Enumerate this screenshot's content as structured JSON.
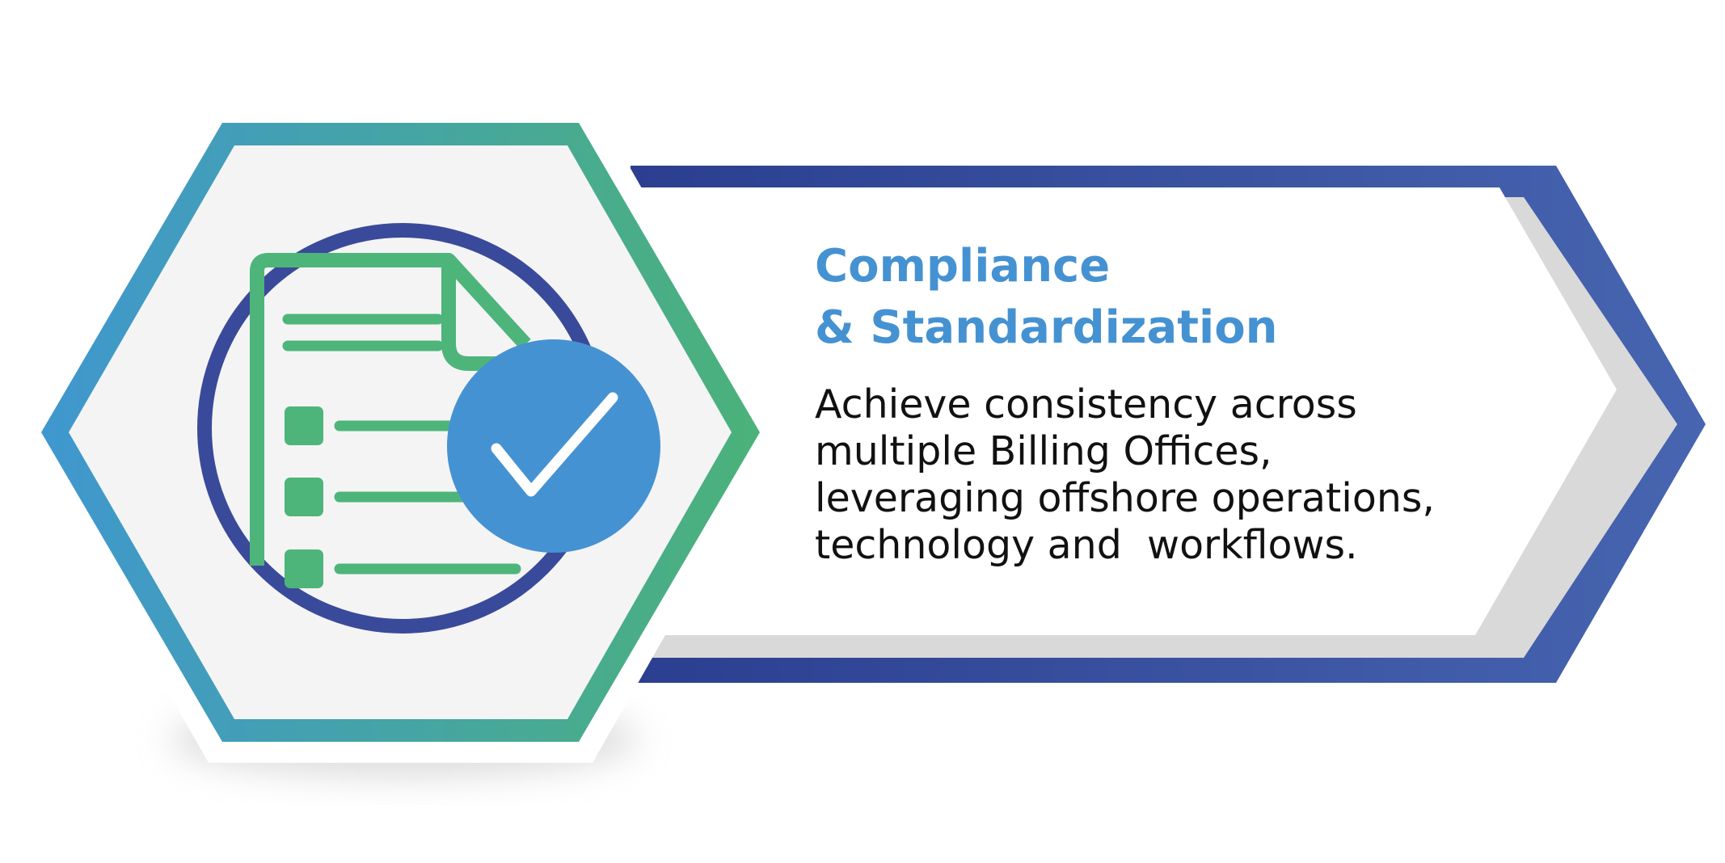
{
  "card": {
    "title_line_1": "Compliance",
    "title_line_2": "& Standardization",
    "description_lines": [
      "Achieve consistency across",
      "multiple Billing Offices,",
      "leveraging offshore operations,",
      "technology and  workflows."
    ]
  },
  "icon": {
    "name": "checklist-document-with-checkmark-icon"
  },
  "colors": {
    "title": "#4592d2",
    "text": "#111111",
    "hex_gradient_start": "#3f97cf",
    "hex_gradient_end": "#4bb27a",
    "arrow_gradient_start": "#2b3e8f",
    "arrow_gradient_end": "#4765b0",
    "circle_ring": "#3a4a9a",
    "document_green": "#4db57a",
    "check_badge": "#4592d2",
    "hex_fill": "#f4f4f4"
  }
}
